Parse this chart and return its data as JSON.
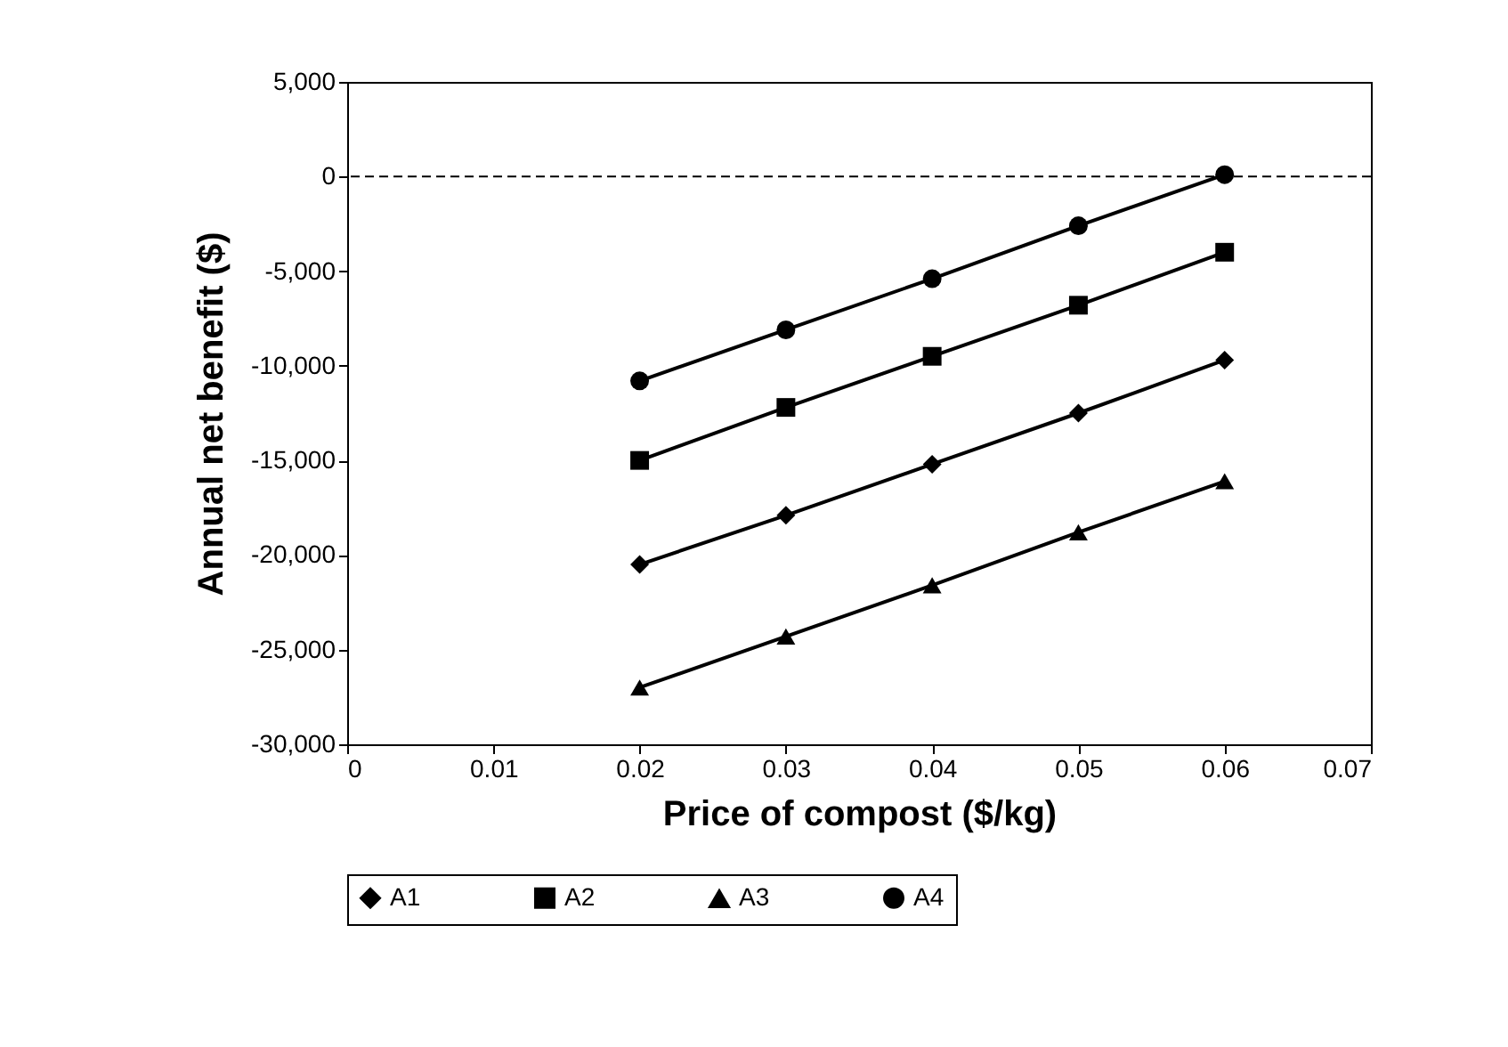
{
  "chart_data": {
    "type": "line",
    "xlabel": "Price of compost ($/kg)",
    "ylabel": "Annual net benefit ($)",
    "x": [
      0.02,
      0.03,
      0.04,
      0.05,
      0.06
    ],
    "series": [
      {
        "name": "A1",
        "color": "#000000",
        "marker": "diamond",
        "values": [
          -20500,
          -17900,
          -15200,
          -12500,
          -9700
        ]
      },
      {
        "name": "A2",
        "color": "#000000",
        "marker": "square",
        "values": [
          -15000,
          -12200,
          -9500,
          -6800,
          -4000
        ]
      },
      {
        "name": "A3",
        "color": "#000000",
        "marker": "triangle",
        "values": [
          -27000,
          -24300,
          -21600,
          -18800,
          -16100
        ]
      },
      {
        "name": "A4",
        "color": "#000000",
        "marker": "circle",
        "values": [
          -10800,
          -8100,
          -5400,
          -2600,
          100
        ]
      }
    ],
    "xlim": [
      0,
      0.07
    ],
    "xticks": [
      0,
      0.01,
      0.02,
      0.03,
      0.04,
      0.05,
      0.06,
      0.07
    ],
    "ylim": [
      -30000,
      5000
    ],
    "yticks": [
      {
        "value": -30000,
        "label": "-30,000"
      },
      {
        "value": -25000,
        "label": "-25,000"
      },
      {
        "value": -20000,
        "label": "-20,000"
      },
      {
        "value": -15000,
        "label": "-15,000"
      },
      {
        "value": -10000,
        "label": "-10,000"
      },
      {
        "value": -5000,
        "label": "-5,000"
      },
      0,
      {
        "value": 5000,
        "label": "5,000"
      }
    ],
    "ref_lines": [
      {
        "axis": "y",
        "value": 0,
        "line_style": "dashed"
      }
    ],
    "legend": "bottom",
    "line_style": "solid"
  }
}
